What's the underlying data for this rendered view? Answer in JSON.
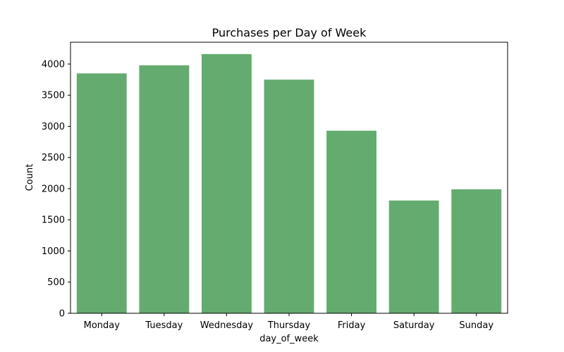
{
  "chart_data": {
    "type": "bar",
    "title": "Purchases per Day of Week",
    "xlabel": "day_of_week",
    "ylabel": "Count",
    "categories": [
      "Monday",
      "Tuesday",
      "Wednesday",
      "Thursday",
      "Friday",
      "Saturday",
      "Sunday"
    ],
    "values": [
      3850,
      3980,
      4160,
      3750,
      2930,
      1810,
      1990
    ],
    "ylim": [
      0,
      4350
    ],
    "yticks": [
      0,
      500,
      1000,
      1500,
      2000,
      2500,
      3000,
      3500,
      4000
    ],
    "grid": false,
    "legend": "none",
    "bar_color": "#64ab6f"
  }
}
